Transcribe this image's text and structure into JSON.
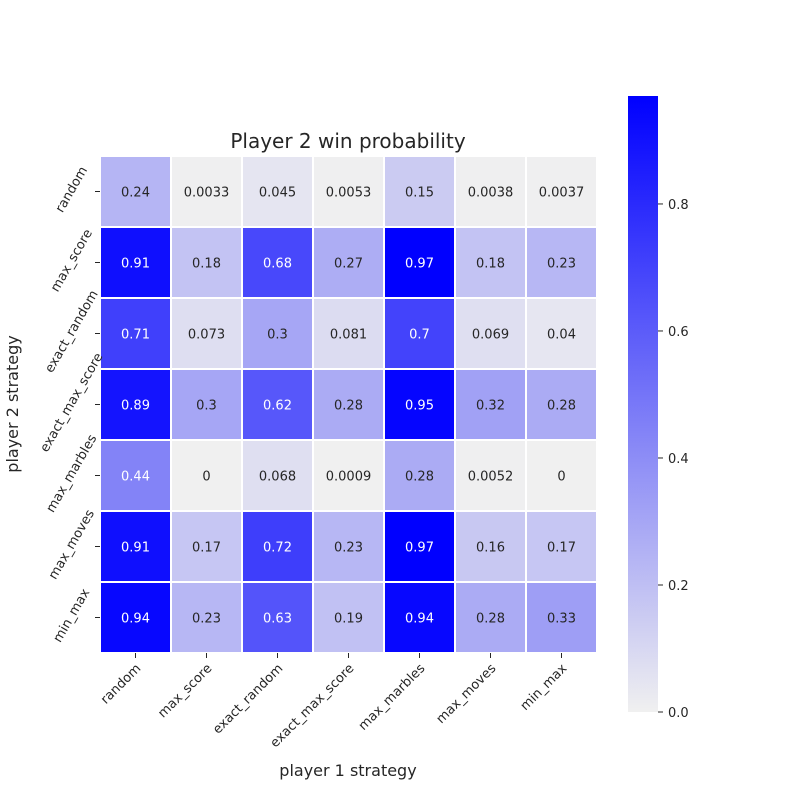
{
  "chart_data": {
    "type": "heatmap",
    "title": "Player 2 win probability",
    "xlabel": "player 1 strategy",
    "ylabel": "player 2 strategy",
    "x_categories": [
      "random",
      "max_score",
      "exact_random",
      "exact_max_score",
      "max_marbles",
      "max_moves",
      "min_max"
    ],
    "y_categories": [
      "random",
      "max_score",
      "exact_random",
      "exact_max_score",
      "max_marbles",
      "max_moves",
      "min_max"
    ],
    "values": [
      [
        0.24,
        0.0033,
        0.045,
        0.0053,
        0.15,
        0.0038,
        0.0037
      ],
      [
        0.91,
        0.18,
        0.68,
        0.27,
        0.97,
        0.18,
        0.23
      ],
      [
        0.71,
        0.073,
        0.3,
        0.081,
        0.7,
        0.069,
        0.04
      ],
      [
        0.89,
        0.3,
        0.62,
        0.28,
        0.95,
        0.32,
        0.28
      ],
      [
        0.44,
        0,
        0.068,
        0.0009,
        0.28,
        0.0052,
        0
      ],
      [
        0.91,
        0.17,
        0.72,
        0.23,
        0.97,
        0.16,
        0.17
      ],
      [
        0.94,
        0.23,
        0.63,
        0.19,
        0.94,
        0.28,
        0.33
      ]
    ],
    "colorbar": {
      "range": [
        0.0,
        0.97
      ],
      "ticks": [
        0.0,
        0.2,
        0.4,
        0.6,
        0.8
      ],
      "tick_labels": [
        "0.0",
        "0.2",
        "0.4",
        "0.6",
        "0.8"
      ],
      "low_color": "#f0f0f0",
      "high_color": "#0000ff",
      "placement": "right"
    },
    "grid": false,
    "annotated": true
  }
}
